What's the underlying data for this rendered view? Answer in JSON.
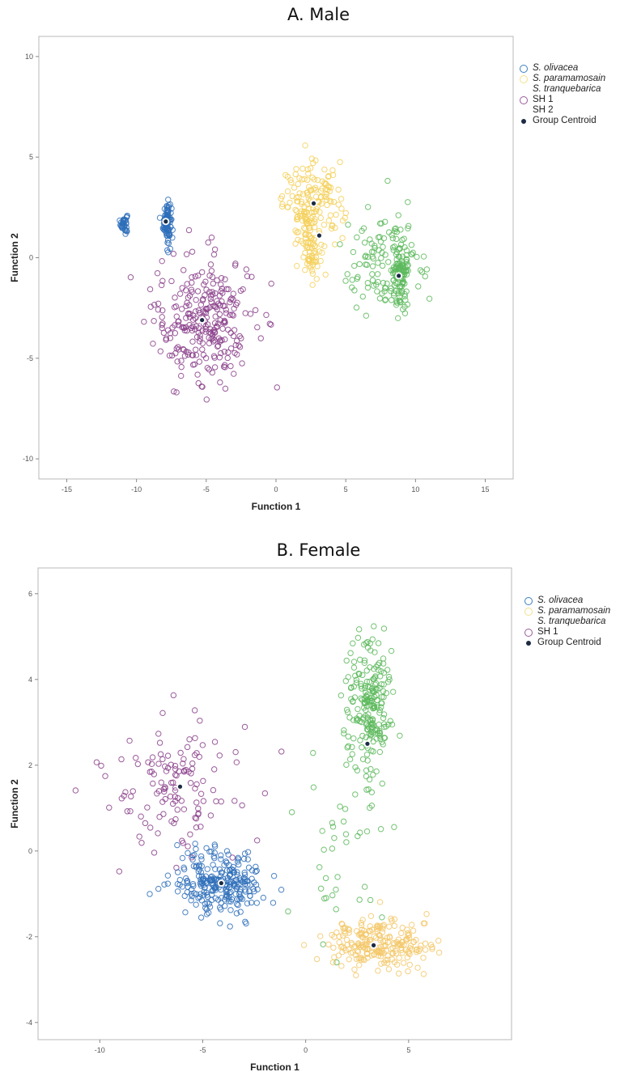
{
  "chart_data": [
    {
      "type": "scatter",
      "title": "A. Male",
      "xlabel": "Function 1",
      "ylabel": "Function 2",
      "xlim": [
        -17,
        17
      ],
      "ylim": [
        -11,
        11
      ],
      "xticks": [
        "-15",
        "-10",
        "-5",
        "0",
        "5",
        "10",
        "15"
      ],
      "yticks": [
        "10",
        "5",
        "0",
        "-5",
        "-10"
      ],
      "xtick_values": [
        -15,
        -10,
        -5,
        0,
        5,
        10,
        15
      ],
      "ytick_values": [
        10,
        5,
        0,
        -5,
        -10
      ],
      "legend_position": "right",
      "legend": [
        {
          "label": "S. olivacea",
          "italic": true,
          "color": "#3a7ec2",
          "marker": "circle"
        },
        {
          "label": "S. paramamosain",
          "italic": true,
          "color": "#f3e08a",
          "marker": "circle"
        },
        {
          "label": "S. tranquebarica",
          "italic": true,
          "color": "#ffffff",
          "marker": "none"
        },
        {
          "label": "SH 1",
          "italic": false,
          "color": "#9a5a9a",
          "marker": "circle"
        },
        {
          "label": "SH 2",
          "italic": false,
          "color": "#ffffff",
          "marker": "none"
        },
        {
          "label": "Group Centroid",
          "italic": false,
          "color": "#1c2a44",
          "marker": "dot"
        }
      ],
      "series": [
        {
          "name": "S. olivacea",
          "color": "#2e6fba",
          "clusters": [
            {
              "cx": -10.9,
              "cy": 1.7,
              "sx": 0.12,
              "sy": 0.25,
              "n": 35
            },
            {
              "cx": -7.8,
              "cy": 1.8,
              "sx": 0.15,
              "sy": 0.5,
              "n": 90
            }
          ]
        },
        {
          "name": "S. paramamosain",
          "color": "#f4d05a",
          "clusters": [
            {
              "cx": 2.7,
              "cy": 2.6,
              "sx": 1.1,
              "sy": 1.0,
              "n": 160
            },
            {
              "cx": 2.5,
              "cy": 0.6,
              "sx": 0.35,
              "sy": 0.8,
              "n": 60
            }
          ]
        },
        {
          "name": "SH 1",
          "color": "#8a3e8a",
          "clusters": [
            {
              "cx": -5.2,
              "cy": -3.1,
              "sx": 1.8,
              "sy": 1.6,
              "n": 280
            }
          ]
        },
        {
          "name": "S. tranquebarica",
          "color": "#5cb85c",
          "clusters": [
            {
              "cx": 8.0,
              "cy": -0.3,
              "sx": 1.6,
              "sy": 1.3,
              "n": 120
            },
            {
              "cx": 8.9,
              "cy": -1.0,
              "sx": 0.3,
              "sy": 0.9,
              "n": 90
            }
          ]
        }
      ],
      "centroids": [
        {
          "x": -7.9,
          "y": 1.8
        },
        {
          "x": 2.7,
          "y": 2.7
        },
        {
          "x": 3.1,
          "y": 1.1
        },
        {
          "x": 8.8,
          "y": -0.9
        },
        {
          "x": -5.3,
          "y": -3.1
        }
      ]
    },
    {
      "type": "scatter",
      "title": "B. Female",
      "xlabel": "Function 1",
      "ylabel": "Function 2",
      "xlim": [
        -13,
        10
      ],
      "ylim": [
        -4.4,
        6.6
      ],
      "xticks": [
        "-10",
        "-5",
        "0",
        "5"
      ],
      "yticks": [
        "6",
        "4",
        "2",
        "0",
        "-2",
        "-4"
      ],
      "xtick_values": [
        -10,
        -5,
        0,
        5
      ],
      "ytick_values": [
        6,
        4,
        2,
        0,
        -2,
        -4
      ],
      "legend_position": "right",
      "legend": [
        {
          "label": "S. olivacea",
          "italic": true,
          "color": "#3a7ec2",
          "marker": "circle"
        },
        {
          "label": "S. paramamosain",
          "italic": true,
          "color": "#f3e08a",
          "marker": "circle"
        },
        {
          "label": "S. tranquebarica",
          "italic": true,
          "color": "#ffffff",
          "marker": "none"
        },
        {
          "label": "SH 1",
          "italic": false,
          "color": "#9a5a9a",
          "marker": "circle"
        },
        {
          "label": "Group Centroid",
          "italic": false,
          "color": "#1c2a44",
          "marker": "dot"
        }
      ],
      "series": [
        {
          "name": "SH 1",
          "color": "#8a3e8a",
          "clusters": [
            {
              "cx": -6.2,
              "cy": 1.6,
              "sx": 1.9,
              "sy": 0.9,
              "n": 130
            }
          ]
        },
        {
          "name": "S. olivacea",
          "color": "#2e6fba",
          "clusters": [
            {
              "cx": -4.1,
              "cy": -0.75,
              "sx": 1.1,
              "sy": 0.35,
              "n": 260
            }
          ]
        },
        {
          "name": "S. tranquebarica",
          "color": "#5cb85c",
          "clusters": [
            {
              "cx": 3.1,
              "cy": 3.3,
              "sx": 0.55,
              "sy": 0.8,
              "n": 220
            },
            {
              "cx": 1.5,
              "cy": -0.2,
              "sx": 1.0,
              "sy": 0.9,
              "n": 40
            }
          ]
        },
        {
          "name": "S. paramamosain",
          "color": "#f3c86a",
          "clusters": [
            {
              "cx": 3.6,
              "cy": -2.15,
              "sx": 1.3,
              "sy": 0.28,
              "n": 230
            }
          ]
        }
      ],
      "centroids": [
        {
          "x": -6.1,
          "y": 1.5
        },
        {
          "x": -4.1,
          "y": -0.75
        },
        {
          "x": 3.0,
          "y": 2.5
        },
        {
          "x": 3.3,
          "y": -2.2
        }
      ]
    }
  ]
}
